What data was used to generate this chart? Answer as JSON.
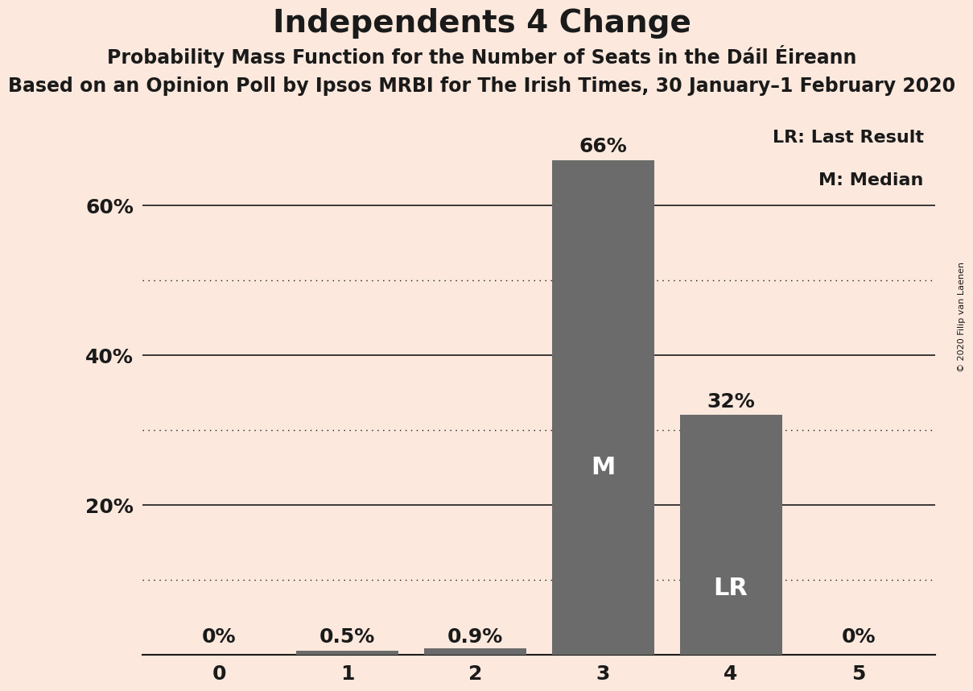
{
  "title": "Independents 4 Change",
  "subtitle1": "Probability Mass Function for the Number of Seats in the Dáil Éireann",
  "subtitle2": "Based on an Opinion Poll by Ipsos MRBI for The Irish Times, 30 January–1 February 2020",
  "copyright": "© 2020 Filip van Laenen",
  "categories": [
    0,
    1,
    2,
    3,
    4,
    5
  ],
  "values": [
    0.0,
    0.005,
    0.009,
    0.66,
    0.32,
    0.0
  ],
  "bar_color": "#6b6b6b",
  "background_color": "#fce8dc",
  "label_color_dark": "#1a1a1a",
  "bar_labels": [
    "0%",
    "0.5%",
    "0.9%",
    "66%",
    "32%",
    "0%"
  ],
  "median_bar": 3,
  "last_result_bar": 4,
  "median_label": "M",
  "last_result_label": "LR",
  "legend_lr": "LR: Last Result",
  "legend_m": "M: Median",
  "ylim": [
    0,
    0.72
  ],
  "solid_yticks": [
    0.0,
    0.2,
    0.4,
    0.6
  ],
  "solid_ytick_labels": [
    "",
    "20%",
    "40%",
    "60%"
  ],
  "dotted_yticks": [
    0.1,
    0.3,
    0.5
  ],
  "title_fontsize": 28,
  "subtitle1_fontsize": 17,
  "subtitle2_fontsize": 17,
  "tick_fontsize": 18,
  "bar_label_fontsize": 18,
  "inner_label_fontsize": 22,
  "legend_fontsize": 16
}
